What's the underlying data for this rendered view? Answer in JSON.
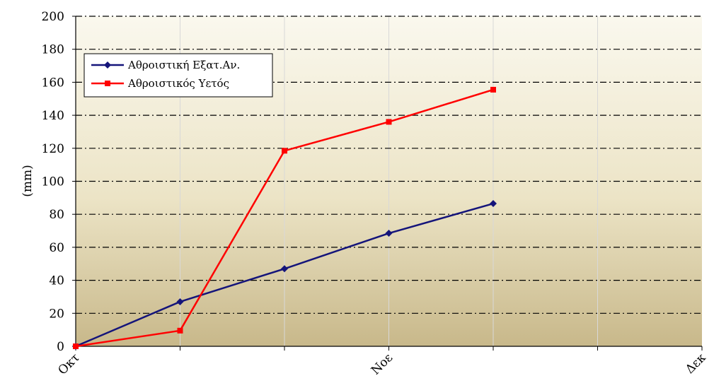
{
  "chart_data": {
    "type": "line",
    "ylabel": "(mm)",
    "xlabel": "",
    "ylim": [
      0,
      200
    ],
    "yticks": [
      0,
      20,
      40,
      60,
      80,
      100,
      120,
      140,
      160,
      180,
      200
    ],
    "x_tick_labels": [
      "Οκτ",
      "Νοε",
      "Δεκ"
    ],
    "x_tick_positions": [
      0,
      3,
      6
    ],
    "xlim": [
      0,
      6
    ],
    "grid": "horizontal dash-dot",
    "legend_position": "top-left",
    "series": [
      {
        "name": "Αθροιστική Εξατ.Αν.",
        "color": "#14147a",
        "marker": "diamond",
        "x": [
          0,
          1,
          2,
          3,
          4
        ],
        "values": [
          0,
          27,
          47,
          68.5,
          86.5
        ]
      },
      {
        "name": "Αθροιστικός Υετός",
        "color": "#ff0000",
        "marker": "square",
        "x": [
          0,
          1,
          2,
          3,
          4
        ],
        "values": [
          0,
          9.5,
          118.5,
          136,
          155.5
        ]
      }
    ]
  }
}
